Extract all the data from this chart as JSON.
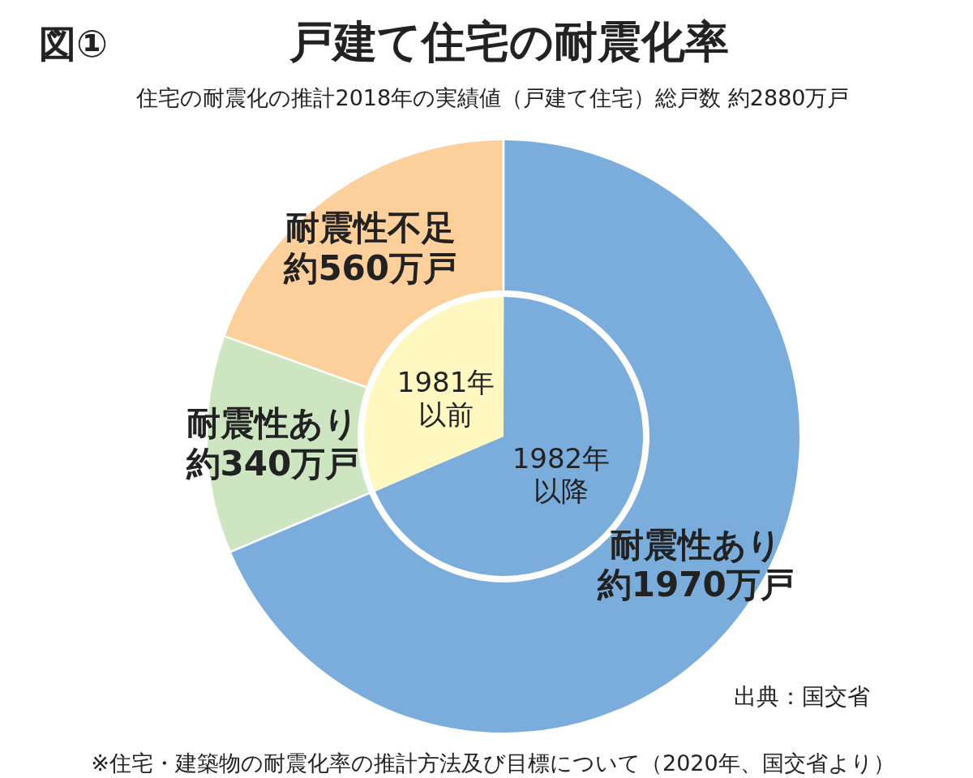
{
  "chart_data": [
    {
      "type": "donut",
      "title": "戸建て住宅の耐震化率",
      "subtitle": "住宅の耐震化の推計2018年の実績値（戸建て住宅）総戸数 約2880万戸",
      "categories": [
        "耐震性あり",
        "耐震性あり",
        "耐震性不足"
      ],
      "values": [
        1970,
        340,
        560
      ],
      "value_labels": [
        "約1970万戸",
        "約340万戸",
        "約560万戸"
      ],
      "colors": [
        "#7aaddc",
        "#cde5c0",
        "#fccf9b"
      ],
      "annotations": [
        "図①",
        "出典：国交省",
        "※住宅・建築物の耐震化率の推計方法及び目標について（2020年、国交省より）"
      ]
    },
    {
      "type": "pie",
      "categories": [
        "1982年以降",
        "1981年以前"
      ],
      "values": [
        68.6,
        31.4
      ],
      "colors": [
        "#7aaddc",
        "#fef8c0"
      ]
    }
  ]
}
